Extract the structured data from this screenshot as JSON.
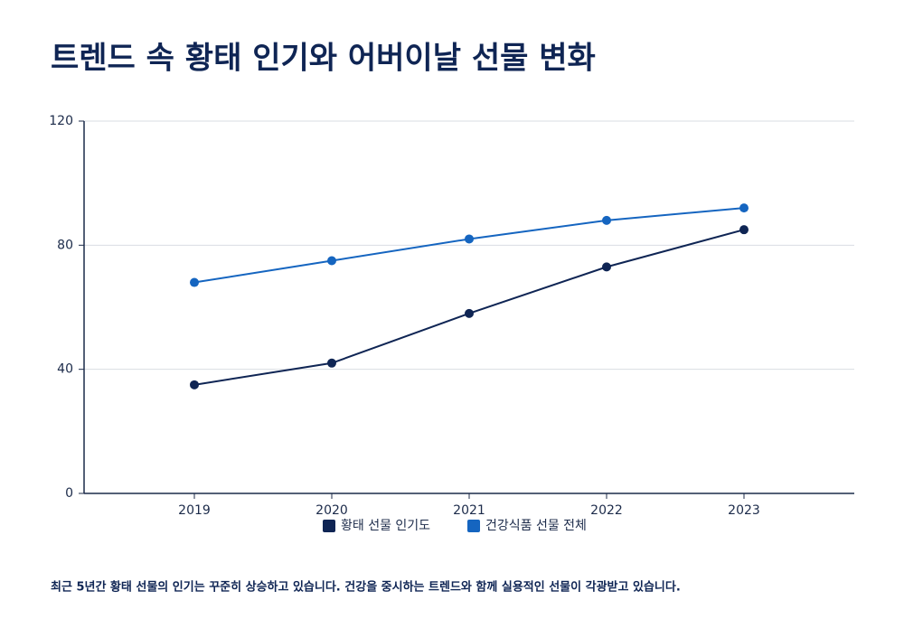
{
  "chart_data": {
    "type": "line",
    "title": "트렌드 속 황태 인기와 어버이날 선물 변화",
    "categories": [
      "2019",
      "2020",
      "2021",
      "2022",
      "2023"
    ],
    "series": [
      {
        "name": "황태 선물 인기도",
        "color": "#0f2554",
        "values": [
          35,
          42,
          58,
          73,
          85
        ]
      },
      {
        "name": "건강식품 선물 전체",
        "color": "#1565c0",
        "values": [
          68,
          75,
          82,
          88,
          92
        ]
      }
    ],
    "ylim": [
      0,
      120
    ],
    "yticks": [
      0,
      40,
      80,
      120
    ],
    "grid": true,
    "legend": "bottom",
    "caption": "최근 5년간 황태 선물의 인기는 꾸준히 상승하고 있습니다. 건강을 중시하는 트렌드와 함께 실용적인 선물이 각광받고 있습니다."
  }
}
